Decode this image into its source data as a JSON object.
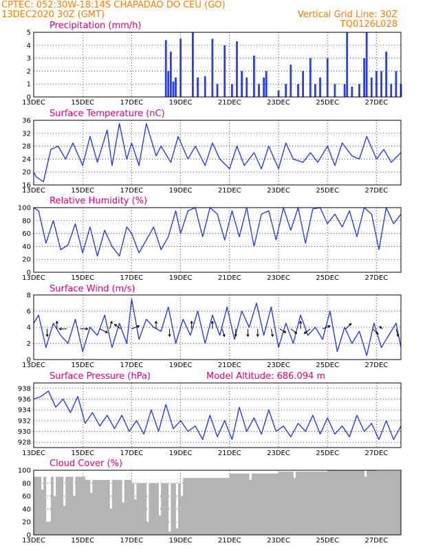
{
  "header": {
    "line1_left": "CPTEC:   052:30W-18:14S   CHAPADAO DO CEU (GO)",
    "line2_left": "13DEC2020 30Z (GMT)",
    "grid_line": "Vertical Grid Line: 30Z",
    "code": "TQ0126L028",
    "model_altitude": "Model Altitude: 686.094 m"
  },
  "colors": {
    "header": "#ff7f00",
    "panel_title": "#e0007a",
    "series": "#2a3cf0",
    "cloud": "#b4b4b4"
  },
  "chart_data": [
    {
      "type": "bar",
      "title": "Precipitation (mm/h)",
      "x_labels": [
        "13DEC",
        "15DEC",
        "17DEC",
        "19DEC",
        "21DEC",
        "23DEC",
        "25DEC",
        "27DEC"
      ],
      "y_ticks": [
        0,
        1,
        2,
        3,
        4,
        5
      ],
      "ylim": [
        0,
        5
      ],
      "x": [
        18.4,
        18.5,
        18.6,
        18.7,
        18.8,
        19.0,
        19.5,
        19.7,
        20.0,
        20.3,
        20.5,
        20.8,
        21.1,
        21.3,
        21.5,
        21.7,
        22.0,
        22.2,
        22.4,
        22.5,
        23.0,
        23.3,
        23.5,
        23.8,
        24.0,
        24.3,
        24.5,
        24.7,
        25.0,
        25.3,
        25.7,
        25.8,
        26.0,
        26.3,
        26.5,
        26.6,
        26.8,
        27.0,
        27.2,
        27.4,
        27.6,
        27.8,
        28.0
      ],
      "values": [
        4.4,
        2.0,
        3.5,
        1.2,
        1.5,
        4.5,
        5.0,
        1.5,
        1.6,
        4.5,
        1.0,
        4.0,
        1.0,
        4.3,
        2.0,
        1.5,
        3.2,
        1.0,
        1.5,
        2.0,
        0.5,
        1.0,
        2.5,
        1.0,
        2.0,
        3.0,
        1.0,
        1.5,
        3.0,
        1.0,
        1.0,
        5.0,
        0.8,
        1.0,
        3.0,
        5.0,
        1.5,
        2.0,
        2.0,
        3.5,
        1.0,
        2.0,
        1.0
      ],
      "grid": true
    },
    {
      "type": "line",
      "title": "Surface Temperature (nC)",
      "x_labels": [
        "13DEC",
        "15DEC",
        "17DEC",
        "19DEC",
        "21DEC",
        "23DEC",
        "25DEC",
        "27DEC"
      ],
      "y_ticks": [
        16,
        20,
        24,
        28,
        32,
        36
      ],
      "ylim": [
        16,
        36
      ],
      "x": [
        13.0,
        13.1,
        13.4,
        13.7,
        14.0,
        14.3,
        14.6,
        15.0,
        15.3,
        15.6,
        16.0,
        16.2,
        16.5,
        16.8,
        17.0,
        17.3,
        17.6,
        18.0,
        18.2,
        18.6,
        18.9,
        19.3,
        19.6,
        20.0,
        20.3,
        20.6,
        21.0,
        21.3,
        21.6,
        22.0,
        22.3,
        22.6,
        23.0,
        23.3,
        23.6,
        24.0,
        24.3,
        24.6,
        25.0,
        25.3,
        25.6,
        26.0,
        26.3,
        26.6,
        27.0,
        27.3,
        27.6,
        28.0
      ],
      "values": [
        20,
        18.5,
        17,
        27,
        28,
        24,
        29,
        22,
        31,
        23,
        33,
        22,
        35,
        24,
        29,
        22,
        35,
        25,
        28,
        23,
        31,
        24,
        28,
        22,
        29,
        24,
        21,
        28,
        22,
        26,
        21,
        28,
        21,
        29,
        24,
        23,
        26,
        23,
        28,
        22,
        29,
        25,
        24,
        31,
        24,
        27,
        23,
        26
      ],
      "grid": true
    },
    {
      "type": "line",
      "title": "Relative Humidity (%)",
      "x_labels": [
        "13DEC",
        "15DEC",
        "17DEC",
        "19DEC",
        "21DEC",
        "23DEC",
        "25DEC",
        "27DEC"
      ],
      "y_ticks": [
        0,
        20,
        40,
        60,
        80,
        100
      ],
      "ylim": [
        0,
        100
      ],
      "x": [
        13.0,
        13.2,
        13.5,
        13.8,
        14.1,
        14.4,
        14.7,
        15.0,
        15.3,
        15.6,
        15.9,
        16.2,
        16.5,
        16.8,
        17.0,
        17.3,
        17.6,
        17.9,
        18.2,
        18.5,
        18.8,
        19.0,
        19.3,
        19.6,
        19.9,
        20.2,
        20.5,
        20.8,
        21.1,
        21.4,
        21.7,
        22.0,
        22.3,
        22.6,
        22.9,
        23.2,
        23.5,
        23.8,
        24.1,
        24.4,
        24.7,
        25.0,
        25.3,
        25.6,
        25.9,
        26.2,
        26.5,
        26.8,
        27.1,
        27.4,
        27.7,
        28.0
      ],
      "values": [
        100,
        95,
        45,
        80,
        35,
        42,
        75,
        30,
        70,
        25,
        65,
        40,
        25,
        70,
        60,
        30,
        50,
        70,
        35,
        55,
        95,
        60,
        95,
        100,
        55,
        100,
        90,
        50,
        95,
        55,
        100,
        40,
        90,
        95,
        50,
        100,
        65,
        100,
        45,
        98,
        100,
        75,
        90,
        70,
        95,
        55,
        100,
        90,
        35,
        100,
        75,
        90
      ],
      "grid": true
    },
    {
      "type": "line",
      "title": "Surface Wind (m/s)",
      "x_labels": [
        "13DEC",
        "15DEC",
        "17DEC",
        "19DEC",
        "21DEC",
        "23DEC",
        "25DEC",
        "27DEC"
      ],
      "y_ticks": [
        0,
        2,
        4,
        6,
        8
      ],
      "ylim": [
        0,
        8
      ],
      "x": [
        13.0,
        13.2,
        13.5,
        13.8,
        14.1,
        14.4,
        14.7,
        15.0,
        15.3,
        15.6,
        15.9,
        16.2,
        16.5,
        16.8,
        17.0,
        17.3,
        17.6,
        17.9,
        18.2,
        18.5,
        18.8,
        19.1,
        19.4,
        19.7,
        20.0,
        20.3,
        20.6,
        20.9,
        21.2,
        21.5,
        21.8,
        22.1,
        22.4,
        22.7,
        23.0,
        23.3,
        23.6,
        23.9,
        24.2,
        24.5,
        24.8,
        25.1,
        25.4,
        25.7,
        26.0,
        26.3,
        26.6,
        26.9,
        27.2,
        27.5,
        27.8,
        28.0
      ],
      "values": [
        4.5,
        5.5,
        1.5,
        4.5,
        3.0,
        2.0,
        5.0,
        1.0,
        4.0,
        3.0,
        5.5,
        1.5,
        4.5,
        2.0,
        7.5,
        2.5,
        5.0,
        4.0,
        3.5,
        6.5,
        2.0,
        5.0,
        3.0,
        6.0,
        2.0,
        5.5,
        3.0,
        6.5,
        2.5,
        6.0,
        4.0,
        7.0,
        3.0,
        6.5,
        1.5,
        4.5,
        2.0,
        5.5,
        3.0,
        4.0,
        2.5,
        6.0,
        1.0,
        4.0,
        2.0,
        3.5,
        0.5,
        4.5,
        1.5,
        3.0,
        4.5,
        1.5
      ],
      "arrows": [
        {
          "x": 13.55,
          "u": 0,
          "v": -1
        },
        {
          "x": 13.95,
          "u": 0,
          "v": 1
        },
        {
          "x": 14.35,
          "u": -1,
          "v": 0
        },
        {
          "x": 14.9,
          "u": 1,
          "v": 0
        },
        {
          "x": 15.7,
          "u": 1,
          "v": -0.5
        },
        {
          "x": 16.1,
          "u": 0.3,
          "v": 1
        },
        {
          "x": 16.55,
          "u": -0.8,
          "v": 0.6
        },
        {
          "x": 17.0,
          "u": 1,
          "v": 0.4
        },
        {
          "x": 18.0,
          "u": 0,
          "v": 1
        },
        {
          "x": 18.55,
          "u": 0,
          "v": -1
        },
        {
          "x": 19.45,
          "u": 0,
          "v": 1
        },
        {
          "x": 20.3,
          "u": 0,
          "v": 1
        },
        {
          "x": 20.7,
          "u": 0.3,
          "v": -1
        },
        {
          "x": 21.25,
          "u": 0,
          "v": -1
        },
        {
          "x": 21.75,
          "u": 0,
          "v": -1
        },
        {
          "x": 22.15,
          "u": 0,
          "v": -1
        },
        {
          "x": 22.7,
          "u": 0.2,
          "v": -1
        },
        {
          "x": 23.05,
          "u": 0.8,
          "v": -0.5
        },
        {
          "x": 23.5,
          "u": 0.8,
          "v": -0.6
        },
        {
          "x": 23.9,
          "u": 0,
          "v": 1
        },
        {
          "x": 24.3,
          "u": -0.8,
          "v": -0.6
        },
        {
          "x": 24.8,
          "u": 1,
          "v": 0.4
        },
        {
          "x": 25.75,
          "u": 0.7,
          "v": 0.7
        },
        {
          "x": 26.85,
          "u": 0.7,
          "v": -0.7
        },
        {
          "x": 27.25,
          "u": -0.4,
          "v": 0.3
        },
        {
          "x": 27.8,
          "u": 0.3,
          "v": -1
        }
      ],
      "grid": true
    },
    {
      "type": "line",
      "title": "Surface Pressure (hPa)",
      "x_labels": [
        "13DEC",
        "15DEC",
        "17DEC",
        "19DEC",
        "21DEC",
        "23DEC",
        "25DEC",
        "27DEC"
      ],
      "y_ticks": [
        928,
        930,
        932,
        934,
        936,
        938
      ],
      "ylim": [
        927,
        939
      ],
      "x": [
        13.0,
        13.3,
        13.6,
        13.9,
        14.2,
        14.5,
        14.8,
        15.1,
        15.4,
        15.7,
        16.0,
        16.3,
        16.6,
        16.9,
        17.2,
        17.5,
        17.8,
        18.1,
        18.4,
        18.7,
        19.0,
        19.3,
        19.6,
        19.9,
        20.2,
        20.5,
        20.8,
        21.1,
        21.4,
        21.7,
        22.0,
        22.3,
        22.6,
        22.9,
        23.2,
        23.5,
        23.8,
        24.1,
        24.4,
        24.7,
        25.0,
        25.3,
        25.6,
        25.9,
        26.2,
        26.5,
        26.8,
        27.1,
        27.4,
        27.7,
        28.0
      ],
      "values": [
        936.0,
        936.5,
        937.5,
        934.5,
        936.0,
        933.5,
        936.5,
        931.5,
        933.5,
        931.0,
        933.0,
        930.5,
        933.0,
        930.0,
        932.0,
        929.5,
        934.0,
        930.0,
        935.0,
        930.5,
        932.0,
        930.0,
        931.0,
        928.5,
        933.0,
        929.0,
        932.0,
        928.5,
        934.5,
        930.0,
        932.5,
        929.5,
        934.0,
        930.0,
        931.0,
        929.0,
        931.5,
        930.0,
        933.0,
        929.5,
        932.5,
        929.5,
        931.0,
        929.0,
        933.0,
        930.0,
        931.5,
        928.5,
        932.0,
        928.5,
        931.0
      ],
      "grid": true
    },
    {
      "type": "bar",
      "title": "Cloud Cover (%)",
      "x_labels": [
        "13DEC",
        "15DEC",
        "17DEC",
        "19DEC",
        "21DEC",
        "23DEC",
        "25DEC",
        "27DEC"
      ],
      "y_ticks": [
        0,
        20,
        40,
        60,
        80,
        100
      ],
      "ylim": [
        0,
        100
      ],
      "baseline_values": [
        90,
        85,
        80,
        88,
        95,
        98,
        100,
        99
      ],
      "dips": [
        {
          "x": 13.3,
          "value": 70
        },
        {
          "x": 13.55,
          "value": 20
        },
        {
          "x": 13.8,
          "value": 60
        },
        {
          "x": 14.2,
          "value": 45
        },
        {
          "x": 14.6,
          "value": 60
        },
        {
          "x": 15.3,
          "value": 65
        },
        {
          "x": 16.1,
          "value": 40
        },
        {
          "x": 16.6,
          "value": 50
        },
        {
          "x": 17.1,
          "value": 55
        },
        {
          "x": 17.6,
          "value": 20
        },
        {
          "x": 18.1,
          "value": 30
        },
        {
          "x": 18.5,
          "value": 5
        },
        {
          "x": 18.8,
          "value": 10
        },
        {
          "x": 19.0,
          "value": 60
        },
        {
          "x": 21.8,
          "value": 85
        },
        {
          "x": 23.6,
          "value": 88
        },
        {
          "x": 26.5,
          "value": 90
        }
      ],
      "grid": true
    }
  ]
}
